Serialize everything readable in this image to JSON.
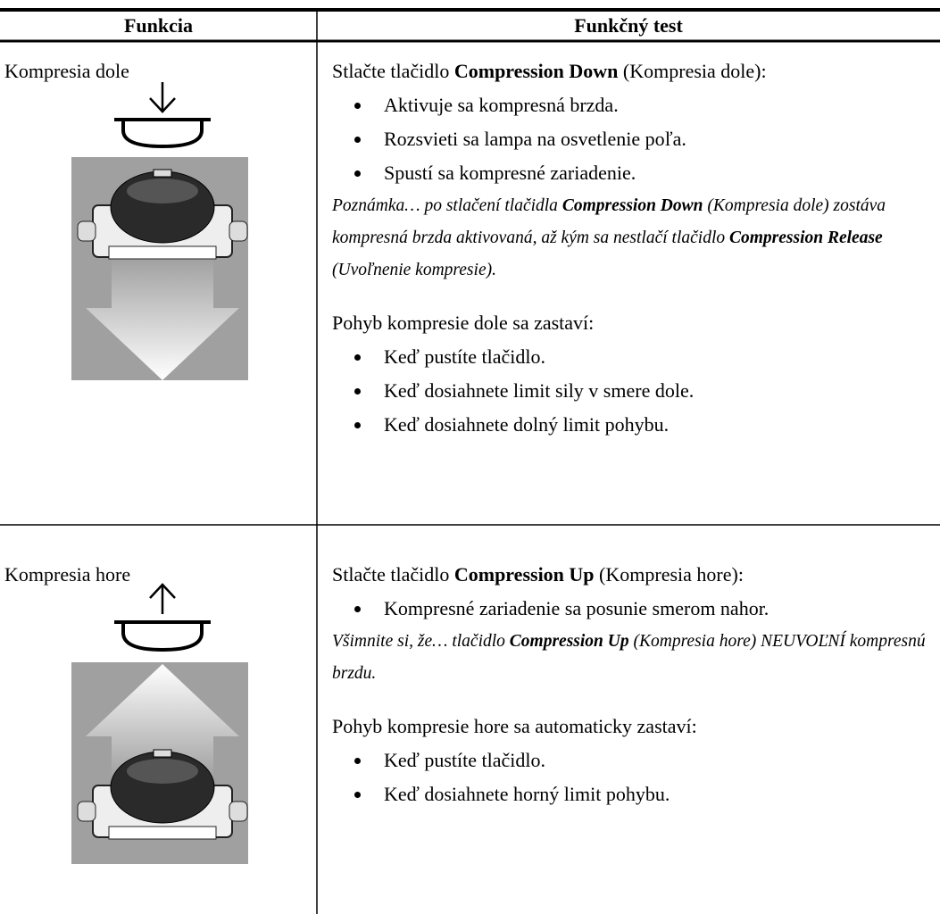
{
  "table": {
    "header": [
      "Funkcia",
      "Funkčný test"
    ],
    "rows": [
      {
        "function": "Kompresia dole",
        "test": [
          {
            "runs": [
              {
                "text": "Stlačte tlačidlo "
              },
              {
                "text": "Compression Down",
                "bold": true
              },
              {
                "text": " (Kompresia dole):"
              }
            ]
          },
          {
            "bullets": [
              "Aktivuje sa kompresná brzda.",
              "Rozsvieti sa lampa na osvetlenie poľa.",
              "Spustí sa kompresné zariadenie."
            ]
          },
          {
            "italic": true,
            "runs": [
              {
                "text": "Poznámka… po stlačení tlačidla "
              },
              {
                "text": "Compression Down",
                "bold": true
              },
              {
                "text": " (Kompresia dole) zostáva kompresná brzda aktivovaná, až kým sa nestlačí tlačidlo "
              },
              {
                "text": "Compression Release",
                "bold": true
              },
              {
                "text": " (Uvoľnenie kompresie)."
              }
            ]
          },
          {
            "runs": [
              {
                "text": "Pohyb kompresie dole sa zastaví:"
              }
            ]
          },
          {
            "bullets": [
              "Keď pustíte tlačidlo.",
              "Keď dosiahnete limit sily v smere dole.",
              "Keď dosiahnete dolný limit pohybu."
            ]
          }
        ]
      },
      {
        "function": "Kompresia hore",
        "test": [
          {
            "runs": [
              {
                "text": "Stlačte tlačidlo "
              },
              {
                "text": "Compression Up",
                "bold": true
              },
              {
                "text": " (Kompresia hore):"
              }
            ]
          },
          {
            "bullets": [
              "Kompresné zariadenie sa posunie smerom nahor."
            ]
          },
          {
            "italic": true,
            "runs": [
              {
                "text": "Všimnite si, že… tlačidlo "
              },
              {
                "text": "Compression Up",
                "bold": true
              },
              {
                "text": " (Kompresia hore) NEUVOĽNÍ kompresnú brzdu."
              }
            ]
          },
          {
            "runs": [
              {
                "text": "Pohyb kompresie hore sa automaticky zastaví:"
              }
            ]
          },
          {
            "bullets": [
              "Keď pustíte tlačidlo.",
              "Keď dosiahnete horný limit pohybu."
            ]
          }
        ]
      }
    ]
  }
}
